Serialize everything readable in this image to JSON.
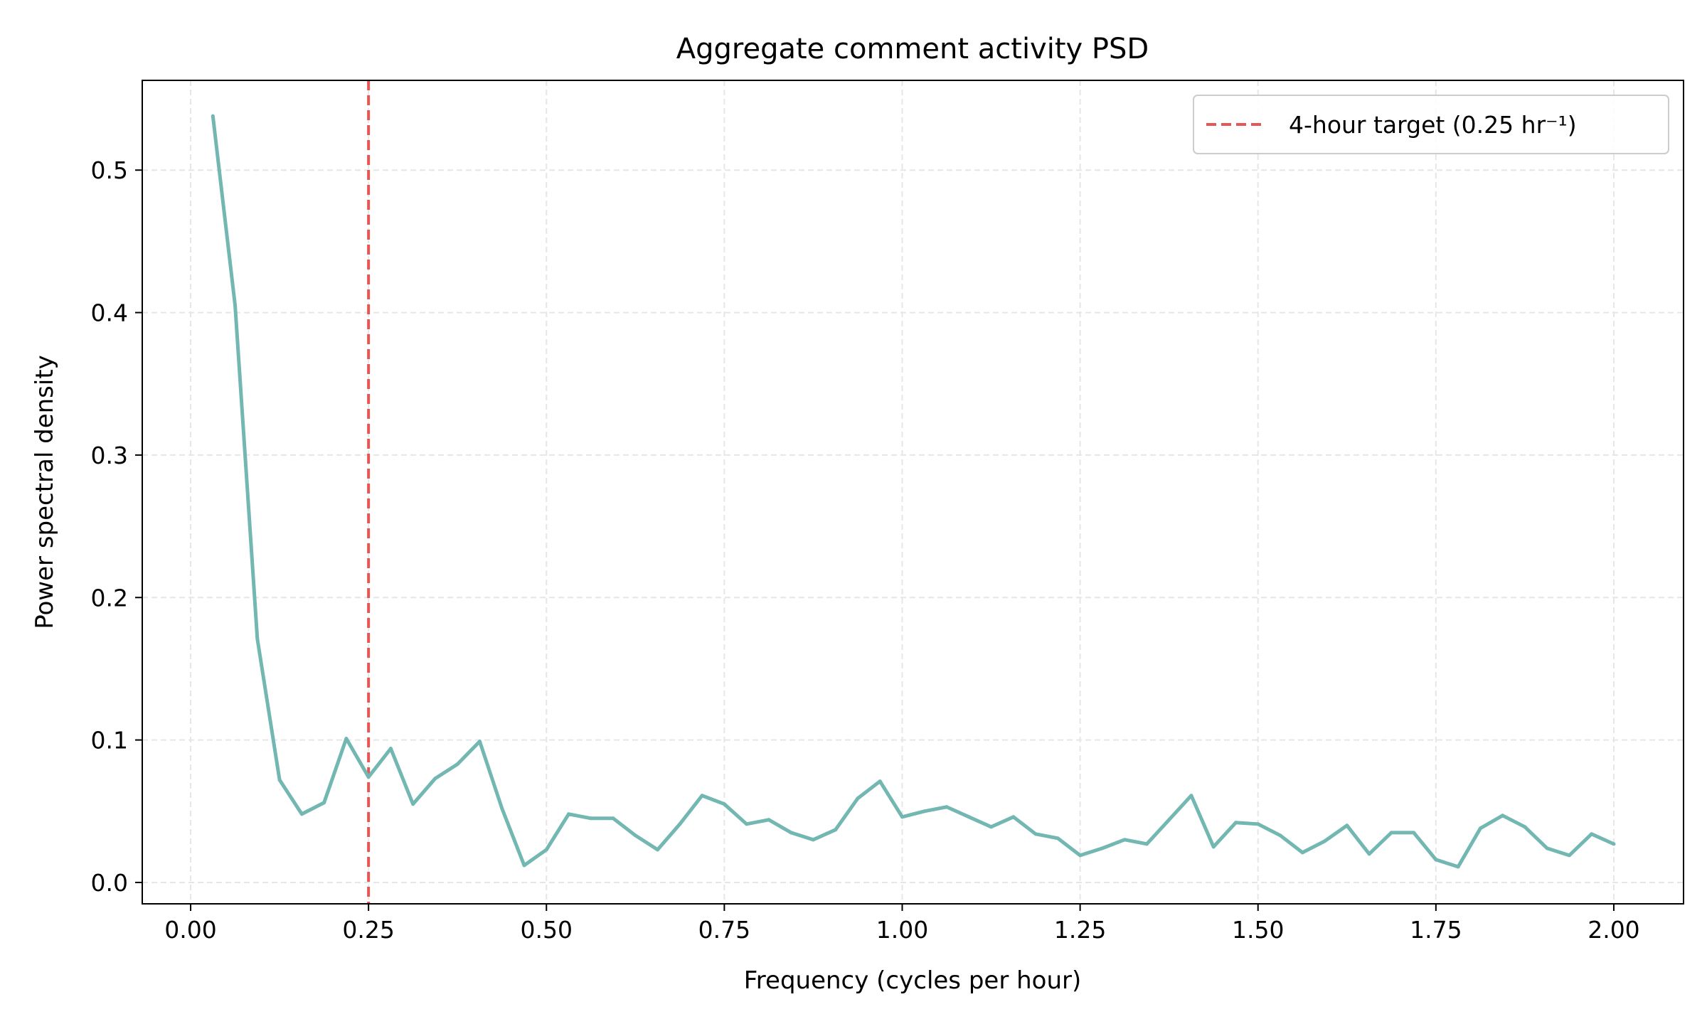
{
  "chart_data": {
    "type": "line",
    "title": "Aggregate comment activity PSD",
    "xlabel": "Frequency (cycles per hour)",
    "ylabel": "Power spectral density",
    "xlim": [
      -0.068,
      2.098
    ],
    "ylim": [
      -0.015,
      0.563
    ],
    "xticks": [
      0.0,
      0.25,
      0.5,
      0.75,
      1.0,
      1.25,
      1.5,
      1.75,
      2.0
    ],
    "xtick_labels": [
      "0.00",
      "0.25",
      "0.50",
      "0.75",
      "1.00",
      "1.25",
      "1.50",
      "1.75",
      "2.00"
    ],
    "yticks": [
      0.0,
      0.1,
      0.2,
      0.3,
      0.4,
      0.5
    ],
    "ytick_labels": [
      "0.0",
      "0.1",
      "0.2",
      "0.3",
      "0.4",
      "0.5"
    ],
    "grid": true,
    "legend_position": "upper right",
    "series": [
      {
        "color": "#72b7b2",
        "x": [
          0.03125,
          0.0625,
          0.09375,
          0.125,
          0.15625,
          0.1875,
          0.21875,
          0.25,
          0.28125,
          0.3125,
          0.34375,
          0.375,
          0.40625,
          0.4375,
          0.46875,
          0.5,
          0.53125,
          0.5625,
          0.59375,
          0.625,
          0.65625,
          0.6875,
          0.71875,
          0.75,
          0.78125,
          0.8125,
          0.84375,
          0.875,
          0.90625,
          0.9375,
          0.96875,
          1.0,
          1.03125,
          1.0625,
          1.09375,
          1.125,
          1.15625,
          1.1875,
          1.21875,
          1.25,
          1.28125,
          1.3125,
          1.34375,
          1.375,
          1.40625,
          1.4375,
          1.46875,
          1.5,
          1.53125,
          1.5625,
          1.59375,
          1.625,
          1.65625,
          1.6875,
          1.71875,
          1.75,
          1.78125,
          1.8125,
          1.84375,
          1.875,
          1.90625,
          1.9375,
          1.96875,
          2.0
        ],
        "values": [
          0.538,
          0.405,
          0.171,
          0.072,
          0.048,
          0.056,
          0.101,
          0.074,
          0.094,
          0.055,
          0.073,
          0.083,
          0.099,
          0.052,
          0.012,
          0.023,
          0.048,
          0.045,
          0.045,
          0.033,
          0.023,
          0.041,
          0.061,
          0.055,
          0.041,
          0.044,
          0.035,
          0.03,
          0.037,
          0.059,
          0.071,
          0.046,
          0.05,
          0.053,
          0.046,
          0.039,
          0.046,
          0.034,
          0.031,
          0.019,
          0.024,
          0.03,
          0.027,
          0.044,
          0.061,
          0.025,
          0.042,
          0.041,
          0.033,
          0.021,
          0.029,
          0.04,
          0.02,
          0.035,
          0.035,
          0.016,
          0.011,
          0.038,
          0.047,
          0.039,
          0.024,
          0.019,
          0.034,
          0.027
        ]
      }
    ],
    "reference_lines": [
      {
        "orientation": "vertical",
        "x": 0.25,
        "label": "4-hour target (0.25 hr⁻¹)",
        "color": "#e45756",
        "style": "dashed"
      }
    ]
  }
}
